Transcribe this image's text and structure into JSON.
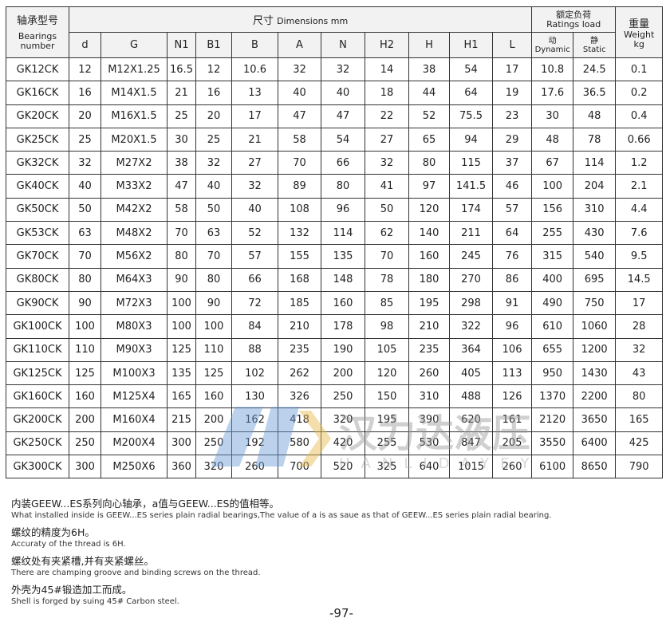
{
  "header": {
    "bearing_cn": "轴承型号",
    "bearing_en": "Bearings number",
    "dims_cn": "尺寸",
    "dims_en": "Dimensions mm",
    "ratings_cn": "额定负荷",
    "ratings_en": "Ratings load",
    "weight_cn": "重量",
    "weight_en": "Weight kg",
    "dynamic_cn": "动",
    "dynamic_en": "Dynamic",
    "static_cn": "静",
    "static_en": "Static",
    "cols": [
      "d",
      "G",
      "N1",
      "B1",
      "B",
      "A",
      "N",
      "H2",
      "H",
      "H1",
      "L"
    ]
  },
  "rows": [
    [
      "GK12CK",
      "12",
      "M12X1.25",
      "16.5",
      "12",
      "10.6",
      "32",
      "32",
      "14",
      "38",
      "54",
      "17",
      "10.8",
      "24.5",
      "0.1"
    ],
    [
      "GK16CK",
      "16",
      "M14X1.5",
      "21",
      "16",
      "13",
      "40",
      "40",
      "18",
      "44",
      "64",
      "19",
      "17.6",
      "36.5",
      "0.2"
    ],
    [
      "GK20CK",
      "20",
      "M16X1.5",
      "25",
      "20",
      "17",
      "47",
      "47",
      "22",
      "52",
      "75.5",
      "23",
      "30",
      "48",
      "0.4"
    ],
    [
      "GK25CK",
      "25",
      "M20X1.5",
      "30",
      "25",
      "21",
      "58",
      "54",
      "27",
      "65",
      "94",
      "29",
      "48",
      "78",
      "0.66"
    ],
    [
      "GK32CK",
      "32",
      "M27X2",
      "38",
      "32",
      "27",
      "70",
      "66",
      "32",
      "80",
      "115",
      "37",
      "67",
      "114",
      "1.2"
    ],
    [
      "GK40CK",
      "40",
      "M33X2",
      "47",
      "40",
      "32",
      "89",
      "80",
      "41",
      "97",
      "141.5",
      "46",
      "100",
      "204",
      "2.1"
    ],
    [
      "GK50CK",
      "50",
      "M42X2",
      "58",
      "50",
      "40",
      "108",
      "96",
      "50",
      "120",
      "174",
      "57",
      "156",
      "310",
      "4.4"
    ],
    [
      "GK53CK",
      "63",
      "M48X2",
      "70",
      "63",
      "52",
      "132",
      "114",
      "62",
      "140",
      "211",
      "64",
      "255",
      "430",
      "7.6"
    ],
    [
      "GK70CK",
      "70",
      "M56X2",
      "80",
      "70",
      "57",
      "155",
      "135",
      "70",
      "160",
      "245",
      "76",
      "315",
      "540",
      "9.5"
    ],
    [
      "GK80CK",
      "80",
      "M64X3",
      "90",
      "80",
      "66",
      "168",
      "148",
      "78",
      "180",
      "270",
      "86",
      "400",
      "695",
      "14.5"
    ],
    [
      "GK90CK",
      "90",
      "M72X3",
      "100",
      "90",
      "72",
      "185",
      "160",
      "85",
      "195",
      "298",
      "91",
      "490",
      "750",
      "17"
    ],
    [
      "GK100CK",
      "100",
      "M80X3",
      "100",
      "100",
      "84",
      "210",
      "178",
      "98",
      "210",
      "322",
      "96",
      "610",
      "1060",
      "28"
    ],
    [
      "GK110CK",
      "110",
      "M90X3",
      "125",
      "110",
      "88",
      "235",
      "190",
      "105",
      "235",
      "364",
      "106",
      "655",
      "1200",
      "32"
    ],
    [
      "GK125CK",
      "125",
      "M100X3",
      "135",
      "125",
      "102",
      "262",
      "200",
      "120",
      "260",
      "405",
      "113",
      "950",
      "1430",
      "43"
    ],
    [
      "GK160CK",
      "160",
      "M125X4",
      "165",
      "160",
      "130",
      "326",
      "250",
      "150",
      "310",
      "488",
      "126",
      "1370",
      "2200",
      "80"
    ],
    [
      "GK200CK",
      "200",
      "M160X4",
      "215",
      "200",
      "162",
      "418",
      "320",
      "195",
      "390",
      "620",
      "161",
      "2120",
      "3650",
      "165"
    ],
    [
      "GK250CK",
      "250",
      "M200X4",
      "300",
      "250",
      "192",
      "580",
      "420",
      "255",
      "530",
      "847",
      "205",
      "3550",
      "6400",
      "425"
    ],
    [
      "GK300CK",
      "300",
      "M250X6",
      "360",
      "320",
      "260",
      "700",
      "520",
      "325",
      "640",
      "1015",
      "260",
      "6100",
      "8650",
      "790"
    ]
  ],
  "notes": [
    {
      "cn": "内装GEEW...ES系列向心轴承，a值与GEEW...ES的值相等。",
      "en": "What installed inside is GEEW...ES series plain radial bearings,The value of a is as saue as that of GEEW...ES series plain radial bearing."
    },
    {
      "cn": "螺纹的精度为6H。",
      "en": "Accuraty of the thread is 6H."
    },
    {
      "cn": "螺纹处有夹紧槽,并有夹紧螺丝。",
      "en": "There are champing groove and binding screws on the thread."
    },
    {
      "cn": "外壳为45#锻造加工而成。",
      "en": "Shell is forged by suing 45# Carbon steel."
    }
  ],
  "page_number": "-97-",
  "watermark": {
    "cn": "汉力达液压",
    "en": "HANLIDAYEYA"
  }
}
